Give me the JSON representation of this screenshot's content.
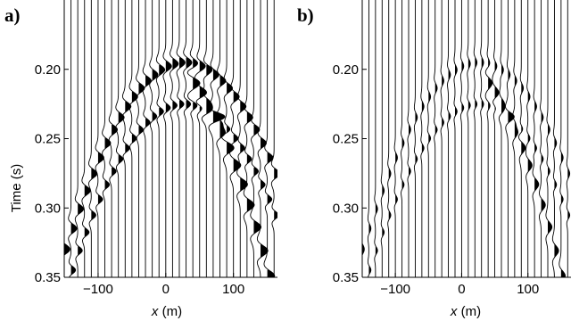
{
  "chart_data": [
    {
      "type": "seismic-wiggle",
      "panel_label": "a)",
      "xlabel_var": "x",
      "xlabel_unit": " (m)",
      "ylabel": "Time (s)",
      "xlim": [
        -150,
        165
      ],
      "ylim": [
        0.15,
        0.35
      ],
      "y_inverted": true,
      "x_ticks": [
        "−100",
        "0",
        "100"
      ],
      "x_tick_values": [
        -100,
        0,
        100
      ],
      "y_ticks": [
        "0.20",
        "0.25",
        "0.30",
        "0.35"
      ],
      "y_tick_values": [
        0.2,
        0.25,
        0.3,
        0.35
      ],
      "trace_spacing_m": 10,
      "events": [
        {
          "name": "primary",
          "apex_x": 25,
          "apex_t": 0.195,
          "curvature": 4.4e-06,
          "amplitude": 0.95,
          "width_s": 0.006
        },
        {
          "name": "secondary",
          "apex_x": 25,
          "apex_t": 0.225,
          "curvature": 4.4e-06,
          "amplitude": 0.75,
          "width_s": 0.005
        },
        {
          "name": "steep-arc",
          "apex_x": -20,
          "apex_t": 0.19,
          "curvature": 5.5e-06,
          "amplitude": 1.2,
          "width_s": 0.007,
          "x_range": [
            40,
            165
          ]
        }
      ]
    },
    {
      "type": "seismic-wiggle",
      "panel_label": "b)",
      "xlabel_var": "x",
      "xlabel_unit": " (m)",
      "ylabel": "",
      "xlim": [
        -150,
        165
      ],
      "ylim": [
        0.15,
        0.35
      ],
      "y_inverted": true,
      "x_ticks": [
        "−100",
        "0",
        "100"
      ],
      "x_tick_values": [
        -100,
        0,
        100
      ],
      "y_ticks": [
        "0.20",
        "0.25",
        "0.30",
        "0.35"
      ],
      "y_tick_values": [
        0.2,
        0.25,
        0.3,
        0.35
      ],
      "trace_spacing_m": 10,
      "events": [
        {
          "name": "primary",
          "apex_x": 25,
          "apex_t": 0.195,
          "curvature": 4.4e-06,
          "amplitude": 0.35,
          "width_s": 0.006
        },
        {
          "name": "secondary",
          "apex_x": 25,
          "apex_t": 0.225,
          "curvature": 4.4e-06,
          "amplitude": 0.35,
          "width_s": 0.005
        },
        {
          "name": "steep-arc",
          "apex_x": -20,
          "apex_t": 0.19,
          "curvature": 5.5e-06,
          "amplitude": 0.7,
          "width_s": 0.007,
          "x_range": [
            40,
            165
          ]
        }
      ]
    }
  ]
}
